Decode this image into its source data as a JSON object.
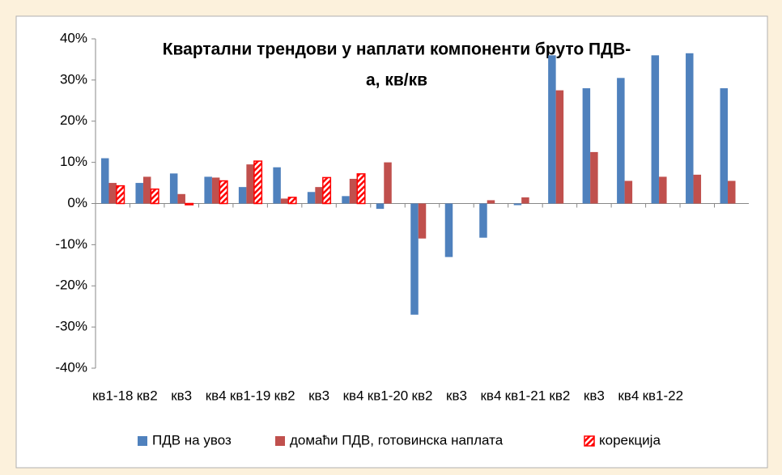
{
  "chart_data": {
    "type": "bar",
    "title": [
      "Квартални трендови у наплати компоненти бруто ПДВ-",
      "а, кв/кв"
    ],
    "categories": [
      "кв1-18",
      "кв2",
      "кв3",
      "кв4",
      "кв1-19",
      "кв2",
      "кв3",
      "кв4",
      "кв1-20",
      "кв2",
      "кв3",
      "кв4",
      "кв1-21",
      "кв2",
      "кв3",
      "кв4",
      "кв1-22",
      null,
      null
    ],
    "series": [
      {
        "name": "ПДВ на увоз",
        "color": "#4f81bd",
        "values": [
          11,
          5,
          7.3,
          6.5,
          4,
          8.8,
          2.8,
          1.8,
          -1.3,
          -27,
          -13,
          -8.3,
          -0.4,
          36,
          28,
          30.5,
          36,
          36.5,
          28
        ]
      },
      {
        "name": "домаћи ПДВ, готовинска наплата",
        "color": "#c0504d",
        "values": [
          5,
          6.5,
          2.3,
          6.3,
          9.5,
          1.2,
          4,
          6,
          10,
          -8.5,
          null,
          0.8,
          1.5,
          27.5,
          12.5,
          5.5,
          6.5,
          7,
          5.5
        ]
      },
      {
        "name": "корекција",
        "color": "#ff0000",
        "pattern": "hatch",
        "values": [
          4.3,
          3.5,
          -0.3,
          5.5,
          10.3,
          1.5,
          6.3,
          7.2,
          null,
          null,
          null,
          null,
          null,
          null,
          null,
          null,
          null,
          null,
          null
        ]
      }
    ],
    "ylim": [
      -40,
      40
    ],
    "yticks": [
      {
        "value": -40,
        "label": "-40%"
      },
      {
        "value": -30,
        "label": "-30%"
      },
      {
        "value": -20,
        "label": "-20%"
      },
      {
        "value": -10,
        "label": "-10%"
      },
      {
        "value": 0,
        "label": "0%"
      },
      {
        "value": 10,
        "label": "10%"
      },
      {
        "value": 20,
        "label": "20%"
      },
      {
        "value": 30,
        "label": "30%"
      },
      {
        "value": 40,
        "label": "40%"
      }
    ],
    "grid": false,
    "legend": "bottom"
  }
}
